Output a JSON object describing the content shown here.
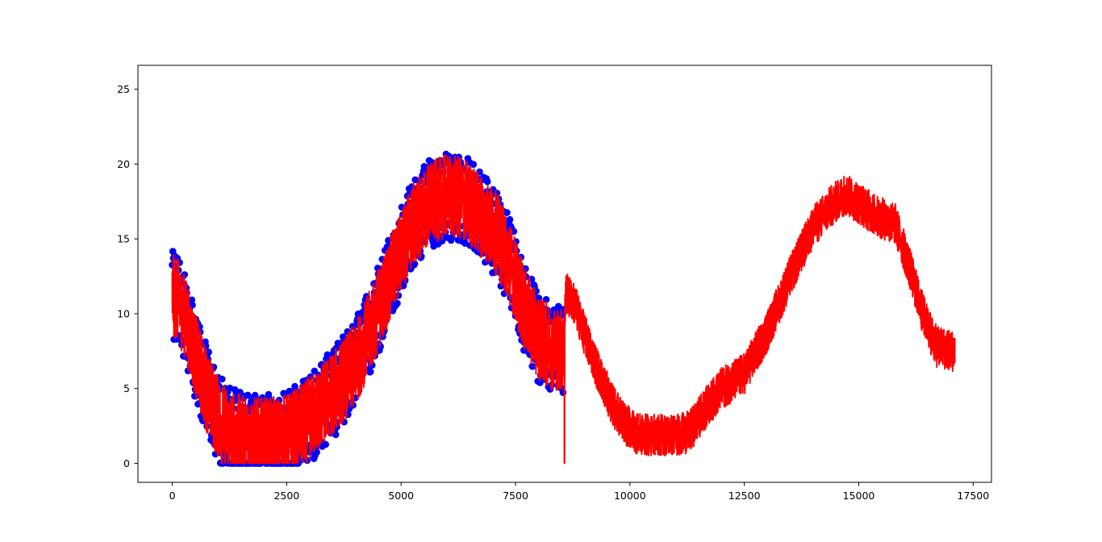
{
  "chart_data": {
    "type": "scatter",
    "title": "",
    "xlabel": "",
    "ylabel": "",
    "xlim": [
      -750,
      17900
    ],
    "ylim": [
      -1.27,
      26.6
    ],
    "x_ticks": [
      0,
      2500,
      5000,
      7500,
      10000,
      12500,
      15000,
      17500
    ],
    "x_tick_labels": [
      "0",
      "2500",
      "5000",
      "7500",
      "10000",
      "12500",
      "15000",
      "17500"
    ],
    "y_ticks": [
      0,
      5,
      10,
      15,
      20,
      25
    ],
    "y_tick_labels": [
      "0",
      "5",
      "10",
      "15",
      "20",
      "25"
    ],
    "grid": false,
    "legend": "none",
    "series": [
      {
        "kind": "markers",
        "color": "#0000ff",
        "x_range": [
          0,
          8550
        ],
        "trend": {
          "x": [
            0,
            100,
            300,
            500,
            700,
            900,
            1100,
            1300,
            1600,
            2000,
            2400,
            2800,
            3200,
            3600,
            4000,
            4400,
            4800,
            5200,
            5600,
            6000,
            6400,
            6800,
            7100,
            7400,
            7700,
            8000,
            8300,
            8550
          ],
          "y": [
            11.2,
            11.0,
            9.6,
            7.3,
            5.3,
            3.7,
            2.6,
            2.0,
            1.7,
            1.6,
            1.7,
            2.4,
            3.6,
            5.0,
            6.6,
            9.4,
            12.7,
            15.6,
            17.3,
            17.9,
            17.6,
            16.4,
            15.3,
            13.2,
            10.3,
            8.4,
            7.7,
            7.6
          ]
        },
        "noise_spread": 3.0
      },
      {
        "kind": "line",
        "color": "#ff0000",
        "x_range": [
          0,
          17100
        ],
        "trend": {
          "x": [
            0,
            100,
            300,
            500,
            700,
            900,
            1100,
            1300,
            1600,
            2000,
            2400,
            2800,
            3200,
            3600,
            4000,
            4400,
            4800,
            5200,
            5600,
            6000,
            6400,
            6800,
            7100,
            7400,
            7700,
            8000,
            8300,
            8550,
            8600,
            8800,
            9000,
            9300,
            9600,
            9900,
            10200,
            10600,
            11000,
            11300,
            11600,
            12000,
            12500,
            13000,
            13500,
            14000,
            14400,
            14700,
            15000,
            15400,
            15800,
            16100,
            16400,
            16700,
            17100
          ],
          "y": [
            11.2,
            11.0,
            9.6,
            7.3,
            5.3,
            3.7,
            2.6,
            2.0,
            1.7,
            1.6,
            1.7,
            2.4,
            3.6,
            5.0,
            6.6,
            9.4,
            12.7,
            15.6,
            17.3,
            17.9,
            17.6,
            16.4,
            15.3,
            13.2,
            10.3,
            8.4,
            7.7,
            7.6,
            11.4,
            10.6,
            8.7,
            6.2,
            4.0,
            2.6,
            1.9,
            1.9,
            1.9,
            2.1,
            3.5,
            5.0,
            6.0,
            8.8,
            12.5,
            15.8,
            17.2,
            18.0,
            17.4,
            16.5,
            16.0,
            13.2,
            10.0,
            7.8,
            7.5
          ]
        },
        "noise_spread": 1.4,
        "spikes": [
          {
            "x": 8570,
            "y": 0.0
          }
        ]
      }
    ]
  }
}
